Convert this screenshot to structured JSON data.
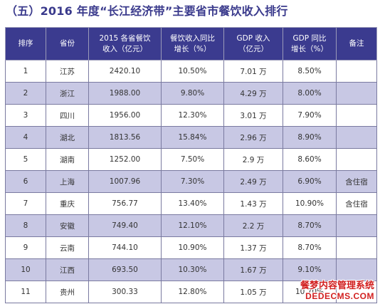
{
  "title": "（五）2016 年度“长江经济带”主要省市餐饮收入排行",
  "table": {
    "headers": [
      "排序",
      "省份",
      "2015 各省餐饮\n收入（亿元）",
      "餐饮收入同比\n增长（%）",
      "GDP 收入\n（亿元）",
      "GDP 同比\n增长（%）",
      "备注"
    ],
    "rows": [
      {
        "rank": "1",
        "province": "江苏",
        "revenue": "2420.10",
        "growth": "10.50%",
        "gdp": "7.01 万",
        "gdp_growth": "8.50%",
        "note": ""
      },
      {
        "rank": "2",
        "province": "浙江",
        "revenue": "1988.00",
        "growth": "9.80%",
        "gdp": "4.29 万",
        "gdp_growth": "8.00%",
        "note": ""
      },
      {
        "rank": "3",
        "province": "四川",
        "revenue": "1956.00",
        "growth": "12.30%",
        "gdp": "3.01 万",
        "gdp_growth": "7.90%",
        "note": ""
      },
      {
        "rank": "4",
        "province": "湖北",
        "revenue": "1813.56",
        "growth": "15.84%",
        "gdp": "2.96 万",
        "gdp_growth": "8.90%",
        "note": ""
      },
      {
        "rank": "5",
        "province": "湖南",
        "revenue": "1252.00",
        "growth": "7.50%",
        "gdp": "2.9 万",
        "gdp_growth": "8.60%",
        "note": ""
      },
      {
        "rank": "6",
        "province": "上海",
        "revenue": "1007.96",
        "growth": "7.30%",
        "gdp": "2.49 万",
        "gdp_growth": "6.90%",
        "note": "含住宿"
      },
      {
        "rank": "7",
        "province": "重庆",
        "revenue": "756.77",
        "growth": "13.40%",
        "gdp": "1.43 万",
        "gdp_growth": "10.90%",
        "note": "含住宿"
      },
      {
        "rank": "8",
        "province": "安徽",
        "revenue": "749.40",
        "growth": "12.10%",
        "gdp": "2.2 万",
        "gdp_growth": "8.70%",
        "note": ""
      },
      {
        "rank": "9",
        "province": "云南",
        "revenue": "744.10",
        "growth": "10.90%",
        "gdp": "1.37 万",
        "gdp_growth": "8.70%",
        "note": ""
      },
      {
        "rank": "10",
        "province": "江西",
        "revenue": "693.50",
        "growth": "10.30%",
        "gdp": "1.67 万",
        "gdp_growth": "9.10%",
        "note": ""
      },
      {
        "rank": "11",
        "province": "贵州",
        "revenue": "300.33",
        "growth": "12.80%",
        "gdp": "1.05 万",
        "gdp_growth": "10.70%",
        "note": ""
      }
    ]
  },
  "watermark": {
    "line1": "餐梦内容管理系统",
    "line2": "DEDECMS.COM"
  },
  "colors": {
    "header_bg": "#3b3b8f",
    "title": "#3a3a8c",
    "stripe": "#c8c8e4",
    "watermark": "#d22020"
  }
}
